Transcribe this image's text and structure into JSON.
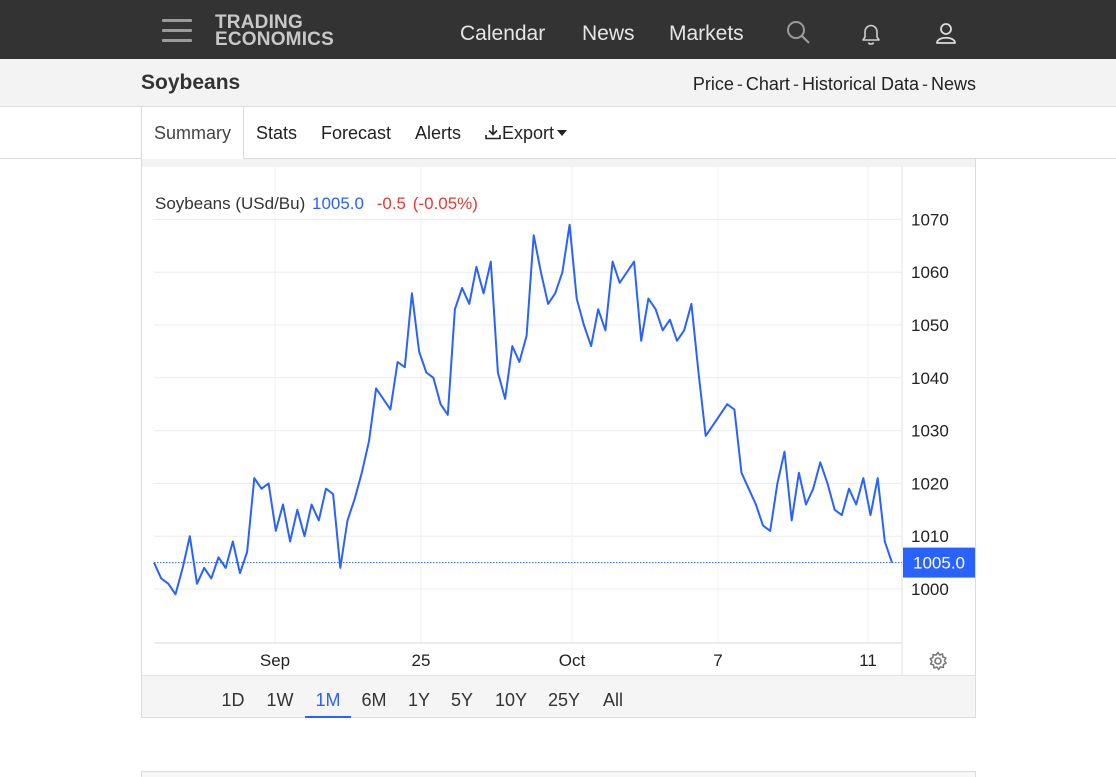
{
  "nav": {
    "logo_line1": "TRADING",
    "logo_line2": "ECONOMICS",
    "links": [
      "Calendar",
      "News",
      "Markets"
    ],
    "icons": [
      "search-icon",
      "bell-icon",
      "user-icon"
    ]
  },
  "header": {
    "title": "Soybeans",
    "subnav": [
      "Price",
      "Chart",
      "Historical Data",
      "News"
    ],
    "separator": "-"
  },
  "tabs": {
    "summary": "Summary",
    "stats": "Stats",
    "forecast": "Forecast",
    "alerts": "Alerts",
    "export": "Export"
  },
  "chart": {
    "series_label": "Soybeans (USd/Bu)",
    "last_price": "1005.0",
    "change": "-0.5",
    "change_pct": "(-0.05%)",
    "price_tag": "1005.0",
    "accent_color": "#2962ff",
    "negative_color": "#e53935",
    "ranges": [
      "1D",
      "1W",
      "1M",
      "6M",
      "1Y",
      "5Y",
      "10Y",
      "25Y",
      "All"
    ],
    "active_range": "1M"
  },
  "chart_data": {
    "type": "line",
    "title": "Soybeans (USd/Bu)",
    "xlabel": "",
    "ylabel": "",
    "x_tick_labels": [
      "Sep",
      "25",
      "Oct",
      "7",
      "11"
    ],
    "y_tick_labels": [
      "1000",
      "1010",
      "1020",
      "1030",
      "1040",
      "1050",
      "1060",
      "1070"
    ],
    "ylim": [
      990,
      1075
    ],
    "grid": true,
    "series": [
      {
        "values": [
          1005,
          1002,
          1001,
          999,
          1004,
          1010,
          1001,
          1004,
          1002,
          1006,
          1004,
          1009,
          1003,
          1007,
          1021,
          1019,
          1020,
          1011,
          1016,
          1009,
          1015,
          1010,
          1016,
          1013,
          1019,
          1018,
          1004,
          1013,
          1017,
          1022,
          1028,
          1038,
          1036,
          1034,
          1043,
          1042,
          1056,
          1045,
          1041,
          1040,
          1035,
          1033,
          1053,
          1057,
          1054,
          1061,
          1056,
          1062,
          1041,
          1036,
          1046,
          1043,
          1048,
          1067,
          1060,
          1054,
          1056,
          1060,
          1069,
          1055,
          1050,
          1046,
          1053,
          1049,
          1062,
          1058,
          1060,
          1062,
          1047,
          1055,
          1053,
          1049,
          1051,
          1047,
          1049,
          1054,
          1041,
          1029,
          1031,
          1033,
          1035,
          1034,
          1022,
          1019,
          1016,
          1012,
          1011,
          1020,
          1026,
          1013,
          1022,
          1016,
          1019,
          1024,
          1020,
          1015,
          1014,
          1019,
          1016,
          1021,
          1014,
          1021,
          1009,
          1005
        ]
      }
    ]
  }
}
